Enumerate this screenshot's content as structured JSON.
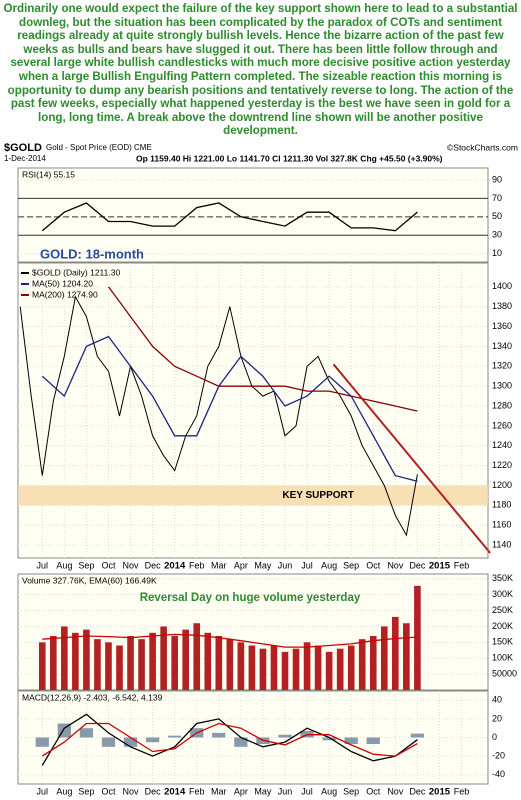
{
  "commentary": "Ordinarily one would expect the failure of the key support shown here to lead to a substantial downleg, but the situation has been complicated by the paradox of COTs and sentiment readings already at quite strongly bullish levels. Hence the bizarre action of the past few weeks as bulls and bears have slugged it out. There has been little follow through and several large white bullish candlesticks with much more decisive positive action yesterday when a large Bullish Engulfing Pattern completed. The sizeable reaction this morning is opportunity to dump any bearish positions and tentatively reverse to long. The action of the past few weeks, especially what happened yesterday is the best we have seen in gold for a long, long time. A break above the downtrend line shown will be another positive development.",
  "header": {
    "symbol": "$GOLD",
    "name": "Gold - Spot Price (EOD) CME",
    "credit": "©StockCharts.com",
    "date": "1-Dec-2014",
    "quote": "Op 1159.40 Hi 1221.00 Lo 1141.70 Cl 1211.30 Vol 327.8K Chg +45.50 (+3.90%)"
  },
  "chart_data": [
    {
      "type": "line",
      "label": "RSI(14) 55.15",
      "xlim": [
        -1.1,
        20.2
      ],
      "ylim": [
        1,
        103
      ],
      "yticks": [
        90,
        70,
        50,
        30,
        10
      ],
      "ref_lines": [
        70,
        50,
        30
      ],
      "series": [
        {
          "kind": "line",
          "color": "#000000",
          "x": [
            0,
            1,
            2,
            3,
            4,
            5,
            6,
            7,
            8,
            9,
            10,
            11,
            12,
            13,
            14,
            15,
            16,
            17
          ],
          "values": [
            35,
            55,
            65,
            45,
            45,
            40,
            40,
            60,
            65,
            50,
            45,
            40,
            55,
            55,
            38,
            38,
            35,
            55.15
          ]
        }
      ]
    },
    {
      "type": "line",
      "title": "GOLD: 18-month",
      "xlim": [
        -1.1,
        20.2
      ],
      "ylim": [
        1127,
        1424
      ],
      "yticks": [
        1400,
        1380,
        1360,
        1340,
        1320,
        1300,
        1280,
        1260,
        1240,
        1220,
        1200,
        1180,
        1160,
        1140
      ],
      "xticks": [
        {
          "value": 0,
          "label": "Jul"
        },
        {
          "value": 1,
          "label": "Aug"
        },
        {
          "value": 2,
          "label": "Sep"
        },
        {
          "value": 3,
          "label": "Oct"
        },
        {
          "value": 4,
          "label": "Nov"
        },
        {
          "value": 5,
          "label": "Dec"
        },
        {
          "value": 6,
          "label": "2014"
        },
        {
          "value": 7,
          "label": "Feb"
        },
        {
          "value": 8,
          "label": "Mar"
        },
        {
          "value": 9,
          "label": "Apr"
        },
        {
          "value": 10,
          "label": "May"
        },
        {
          "value": 11,
          "label": "Jun"
        },
        {
          "value": 12,
          "label": "Jul"
        },
        {
          "value": 13,
          "label": "Aug"
        },
        {
          "value": 14,
          "label": "Sep"
        },
        {
          "value": 15,
          "label": "Oct"
        },
        {
          "value": 16,
          "label": "Nov"
        },
        {
          "value": 17,
          "label": "Dec"
        },
        {
          "value": 18,
          "label": "2015"
        },
        {
          "value": 19,
          "label": "Feb"
        }
      ],
      "support_band": {
        "range": [
          1180,
          1200
        ],
        "label": "KEY SUPPORT",
        "color": "#f8d9a8"
      },
      "trendline": {
        "x": [
          13.2,
          20.3
        ],
        "y": [
          1322,
          1132
        ],
        "color": "#b22222"
      },
      "series": [
        {
          "kind": "line",
          "name": "$GOLD (Daily) 1211.30",
          "color": "#000000",
          "x": [
            -1,
            -0.5,
            0,
            0.5,
            1,
            1.5,
            2,
            2.5,
            3,
            3.5,
            4,
            4.5,
            5,
            5.5,
            6,
            6.5,
            7,
            7.5,
            8,
            8.5,
            9,
            9.5,
            10,
            10.5,
            11,
            11.5,
            12,
            12.5,
            13,
            13.5,
            14,
            14.5,
            15,
            15.5,
            16,
            16.5,
            17
          ],
          "values": [
            1380,
            1290,
            1210,
            1285,
            1330,
            1390,
            1370,
            1330,
            1315,
            1270,
            1320,
            1290,
            1250,
            1230,
            1215,
            1250,
            1270,
            1320,
            1340,
            1380,
            1330,
            1300,
            1290,
            1295,
            1250,
            1260,
            1320,
            1330,
            1305,
            1290,
            1270,
            1240,
            1220,
            1200,
            1170,
            1150,
            1211.3
          ]
        },
        {
          "kind": "line",
          "name": "MA(50) 1204.20",
          "color": "#1a237e",
          "x": [
            0,
            1,
            2,
            3,
            4,
            5,
            6,
            7,
            8,
            9,
            10,
            11,
            12,
            13,
            14,
            15,
            16,
            17
          ],
          "values": [
            1310,
            1290,
            1340,
            1350,
            1320,
            1290,
            1250,
            1250,
            1300,
            1330,
            1310,
            1280,
            1290,
            1310,
            1290,
            1250,
            1210,
            1204.2
          ]
        },
        {
          "kind": "line",
          "name": "MA(200) 1274.90",
          "color": "#8b0000",
          "x": [
            3,
            4,
            5,
            6,
            7,
            8,
            9,
            10,
            11,
            12,
            13,
            14,
            15,
            16,
            17
          ],
          "values": [
            1400,
            1370,
            1340,
            1320,
            1310,
            1300,
            1300,
            1300,
            1300,
            1295,
            1295,
            1290,
            1285,
            1280,
            1274.9
          ]
        }
      ]
    },
    {
      "type": "bar",
      "label": "Volume 327.76K, EMA(60) 166.49K",
      "annotation": "Reversal Day on huge volume yesterday",
      "xlim": [
        -1.1,
        20.2
      ],
      "ylim": [
        0,
        365000
      ],
      "yticks": [
        {
          "value": 350000,
          "label": "350K"
        },
        {
          "value": 300000,
          "label": "300K"
        },
        {
          "value": 250000,
          "label": "250K"
        },
        {
          "value": 200000,
          "label": "200K"
        },
        {
          "value": 150000,
          "label": "150K"
        },
        {
          "value": 100000,
          "label": "100K"
        },
        50000
      ],
      "series": [
        {
          "kind": "bar",
          "color": "#b22222",
          "x": [
            0,
            0.5,
            1,
            1.5,
            2,
            2.5,
            3,
            3.5,
            4,
            4.5,
            5,
            5.5,
            6,
            6.5,
            7,
            7.5,
            8,
            8.5,
            9,
            9.5,
            10,
            10.5,
            11,
            11.5,
            12,
            12.5,
            13,
            13.5,
            14,
            14.5,
            15,
            15.5,
            16,
            16.5,
            17
          ],
          "values": [
            150000,
            170000,
            200000,
            180000,
            190000,
            160000,
            150000,
            140000,
            170000,
            160000,
            180000,
            200000,
            170000,
            190000,
            210000,
            180000,
            170000,
            160000,
            150000,
            140000,
            130000,
            140000,
            120000,
            130000,
            150000,
            140000,
            120000,
            130000,
            140000,
            160000,
            170000,
            200000,
            230000,
            210000,
            327760
          ]
        },
        {
          "kind": "line",
          "color": "#cc0000",
          "x": [
            0,
            1,
            2,
            3,
            4,
            5,
            6,
            7,
            8,
            9,
            10,
            11,
            12,
            13,
            14,
            15,
            16,
            17
          ],
          "values": [
            160000,
            165000,
            170000,
            168000,
            165000,
            170000,
            175000,
            172000,
            165000,
            155000,
            145000,
            135000,
            135000,
            140000,
            145000,
            155000,
            162000,
            166490
          ]
        }
      ]
    },
    {
      "type": "line",
      "label": "MACD(12,26,9) -2.403, -6.542, 4.139",
      "xlim": [
        -1.1,
        20.2
      ],
      "ylim": [
        -50,
        50
      ],
      "yticks": [
        40,
        20,
        0,
        -20,
        -40
      ],
      "xticks": [
        {
          "value": 0,
          "label": "Jul"
        },
        {
          "value": 1,
          "label": "Aug"
        },
        {
          "value": 2,
          "label": "Sep"
        },
        {
          "value": 3,
          "label": "Oct"
        },
        {
          "value": 4,
          "label": "Nov"
        },
        {
          "value": 5,
          "label": "Dec"
        },
        {
          "value": 6,
          "label": "2014"
        },
        {
          "value": 7,
          "label": "Feb"
        },
        {
          "value": 8,
          "label": "Mar"
        },
        {
          "value": 9,
          "label": "Apr"
        },
        {
          "value": 10,
          "label": "May"
        },
        {
          "value": 11,
          "label": "Jun"
        },
        {
          "value": 12,
          "label": "Jul"
        },
        {
          "value": 13,
          "label": "Aug"
        },
        {
          "value": 14,
          "label": "Sep"
        },
        {
          "value": 15,
          "label": "Oct"
        },
        {
          "value": 16,
          "label": "Nov"
        },
        {
          "value": 17,
          "label": "Dec"
        },
        {
          "value": 18,
          "label": "2015"
        },
        {
          "value": 19,
          "label": "Feb"
        }
      ],
      "series": [
        {
          "kind": "bar",
          "color": "#8899aa",
          "x": [
            0,
            1,
            2,
            3,
            4,
            5,
            6,
            7,
            8,
            9,
            10,
            11,
            12,
            13,
            14,
            15,
            16,
            17
          ],
          "values": [
            -10,
            15,
            10,
            -10,
            -10,
            -5,
            2,
            10,
            5,
            -10,
            -7,
            3,
            7,
            -3,
            -7,
            -7,
            0,
            4.139
          ]
        },
        {
          "kind": "line",
          "color": "#000000",
          "x": [
            0,
            1,
            2,
            3,
            4,
            5,
            6,
            7,
            8,
            9,
            10,
            11,
            12,
            13,
            14,
            15,
            16,
            17
          ],
          "values": [
            -30,
            10,
            25,
            5,
            -10,
            -20,
            -10,
            15,
            20,
            0,
            -10,
            -5,
            10,
            0,
            -15,
            -25,
            -20,
            -2.403
          ]
        },
        {
          "kind": "line",
          "color": "#cc0000",
          "x": [
            0,
            1,
            2,
            3,
            4,
            5,
            6,
            7,
            8,
            9,
            10,
            11,
            12,
            13,
            14,
            15,
            16,
            17
          ],
          "values": [
            -20,
            -5,
            15,
            15,
            0,
            -15,
            -12,
            5,
            15,
            10,
            -3,
            -8,
            3,
            3,
            -8,
            -18,
            -20,
            -6.542
          ]
        }
      ]
    }
  ]
}
